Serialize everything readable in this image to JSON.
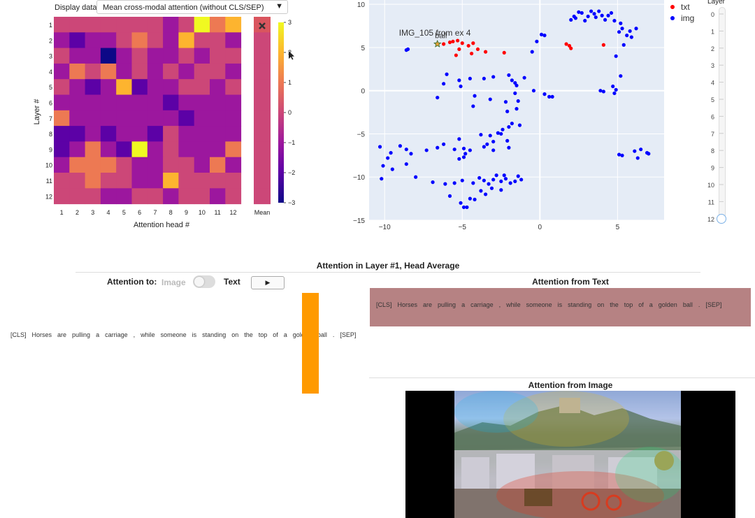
{
  "controls": {
    "display_label": "Display data:",
    "display_value": "Mean cross-modal attention (without CLS/SEP)",
    "dropdown_arrow": "▼"
  },
  "heatmap": {
    "row_labels": [
      "1",
      "2",
      "3",
      "4",
      "5",
      "6",
      "7",
      "8",
      "9",
      "10",
      "11",
      "12"
    ],
    "col_labels": [
      "1",
      "2",
      "3",
      "4",
      "5",
      "6",
      "7",
      "8",
      "9",
      "10",
      "11",
      "12"
    ],
    "mean_label": "Mean",
    "xlabel": "Attention head #",
    "ylabel": "Layer #",
    "colorbar_ticks": [
      "3",
      "2",
      "1",
      "0",
      "−1",
      "−2",
      "−3"
    ],
    "close_icon": "close-x-icon",
    "colors": [
      "#0d0887",
      "#5c01a6",
      "#9c179e",
      "#cc4778",
      "#ed7953",
      "#fdb42f",
      "#f0f921"
    ]
  },
  "chart_data": {
    "type": "scatter",
    "series": [
      {
        "name": "txt",
        "color": "#ff0000",
        "points": [
          [
            -5.8,
            5.6
          ],
          [
            -5.6,
            5.7
          ],
          [
            -5.3,
            5.8
          ],
          [
            -5.0,
            5.5
          ],
          [
            -5.2,
            4.8
          ],
          [
            -5.4,
            4.1
          ],
          [
            -4.6,
            5.2
          ],
          [
            -4.4,
            4.3
          ],
          [
            -4.0,
            4.8
          ],
          [
            -3.5,
            4.5
          ],
          [
            -2.3,
            4.4
          ],
          [
            -4.3,
            5.5
          ],
          [
            -6.2,
            5.4
          ],
          [
            1.7,
            5.4
          ],
          [
            1.9,
            5.2
          ],
          [
            2.0,
            4.9
          ],
          [
            4.1,
            5.3
          ]
        ]
      },
      {
        "name": "img",
        "color": "#0000ff",
        "points": [
          [
            -8.6,
            4.7
          ],
          [
            -8.5,
            4.8
          ],
          [
            -6.6,
            -0.8
          ],
          [
            -6.2,
            0.8
          ],
          [
            -6.0,
            1.9
          ],
          [
            -5.2,
            1.2
          ],
          [
            -5.1,
            0.5
          ],
          [
            -4.5,
            1.4
          ],
          [
            -4.3,
            -1.8
          ],
          [
            -4.2,
            -0.6
          ],
          [
            -3.6,
            1.4
          ],
          [
            -3.2,
            -1.0
          ],
          [
            -3.0,
            1.6
          ],
          [
            -2.2,
            -1.3
          ],
          [
            -2.1,
            -2.4
          ],
          [
            -2.0,
            1.8
          ],
          [
            -1.8,
            1.2
          ],
          [
            -1.6,
            0.9
          ],
          [
            -1.5,
            0.6
          ],
          [
            -1.6,
            -0.3
          ],
          [
            -1.4,
            -1.2
          ],
          [
            -1.5,
            -2.1
          ],
          [
            -1.8,
            -3.8
          ],
          [
            -1.3,
            -4.0
          ],
          [
            -2.4,
            -4.5
          ],
          [
            -2.5,
            -5.0
          ],
          [
            -3.0,
            -5.9
          ],
          [
            -3.4,
            -6.2
          ],
          [
            -3.6,
            -6.5
          ],
          [
            -3.8,
            -5.1
          ],
          [
            -3.2,
            -5.2
          ],
          [
            -2.7,
            -4.9
          ],
          [
            -2.0,
            -4.2
          ],
          [
            -2.1,
            -5.8
          ],
          [
            -2.0,
            -6.6
          ],
          [
            -3.0,
            -6.9
          ],
          [
            -4.5,
            -6.9
          ],
          [
            -4.8,
            -7.3
          ],
          [
            -4.9,
            -7.7
          ],
          [
            -5.2,
            -7.9
          ],
          [
            -5.5,
            -6.8
          ],
          [
            -4.9,
            -6.7
          ],
          [
            -5.2,
            -5.6
          ],
          [
            -6.2,
            -6.2
          ],
          [
            -6.6,
            -6.6
          ],
          [
            -7.3,
            -6.9
          ],
          [
            -8.6,
            -6.8
          ],
          [
            -8.3,
            -7.3
          ],
          [
            -8.6,
            -8.5
          ],
          [
            -9.0,
            -6.4
          ],
          [
            -9.6,
            -7.2
          ],
          [
            -9.8,
            -7.8
          ],
          [
            -10.1,
            -8.7
          ],
          [
            -10.3,
            -6.5
          ],
          [
            -10.2,
            -10.2
          ],
          [
            -9.5,
            -9.1
          ],
          [
            -8.0,
            -10.0
          ],
          [
            -6.9,
            -10.6
          ],
          [
            -6.1,
            -10.8
          ],
          [
            -5.5,
            -10.7
          ],
          [
            -5.0,
            -10.4
          ],
          [
            -4.3,
            -10.7
          ],
          [
            -3.9,
            -10.1
          ],
          [
            -3.6,
            -10.4
          ],
          [
            -3.3,
            -10.8
          ],
          [
            -3.0,
            -10.3
          ],
          [
            -2.8,
            -9.8
          ],
          [
            -2.5,
            -10.5
          ],
          [
            -2.2,
            -10.2
          ],
          [
            -1.9,
            -10.7
          ],
          [
            -1.6,
            -10.5
          ],
          [
            -1.2,
            -10.3
          ],
          [
            -1.4,
            -9.9
          ],
          [
            -2.3,
            -9.8
          ],
          [
            -3.8,
            -11.6
          ],
          [
            -4.5,
            -12.5
          ],
          [
            -3.5,
            -12.0
          ],
          [
            -2.5,
            -11.5
          ],
          [
            -3.1,
            -11.3
          ],
          [
            -4.2,
            -12.6
          ],
          [
            -5.1,
            -13.0
          ],
          [
            -4.7,
            -13.5
          ],
          [
            -4.9,
            -13.5
          ],
          [
            -5.8,
            -12.2
          ],
          [
            -0.5,
            4.5
          ],
          [
            -0.2,
            5.7
          ],
          [
            0.1,
            6.5
          ],
          [
            0.3,
            6.4
          ],
          [
            -1.0,
            1.5
          ],
          [
            -0.4,
            0.0
          ],
          [
            0.3,
            -0.4
          ],
          [
            0.6,
            -0.7
          ],
          [
            0.8,
            -0.7
          ],
          [
            2.0,
            8.2
          ],
          [
            2.2,
            8.6
          ],
          [
            2.3,
            8.4
          ],
          [
            2.5,
            9.1
          ],
          [
            2.7,
            9.0
          ],
          [
            2.9,
            8.1
          ],
          [
            3.1,
            8.6
          ],
          [
            3.3,
            9.2
          ],
          [
            3.5,
            8.9
          ],
          [
            3.6,
            8.5
          ],
          [
            3.8,
            9.2
          ],
          [
            4.0,
            8.7
          ],
          [
            4.2,
            8.2
          ],
          [
            4.4,
            8.7
          ],
          [
            4.6,
            9.0
          ],
          [
            4.8,
            8.1
          ],
          [
            5.2,
            7.8
          ],
          [
            5.3,
            7.2
          ],
          [
            5.1,
            6.8
          ],
          [
            5.6,
            6.4
          ],
          [
            5.8,
            6.9
          ],
          [
            6.2,
            7.2
          ],
          [
            5.9,
            6.2
          ],
          [
            5.4,
            5.3
          ],
          [
            4.9,
            4.0
          ],
          [
            5.2,
            1.7
          ],
          [
            3.9,
            0.0
          ],
          [
            4.1,
            -0.1
          ],
          [
            4.8,
            -0.3
          ],
          [
            4.9,
            0.1
          ],
          [
            4.7,
            0.5
          ],
          [
            6.1,
            -7.0
          ],
          [
            6.3,
            -7.8
          ],
          [
            6.5,
            -6.8
          ],
          [
            6.9,
            -7.2
          ],
          [
            7.0,
            -7.3
          ],
          [
            5.1,
            -7.4
          ],
          [
            5.3,
            -7.5
          ]
        ]
      }
    ],
    "highlight": {
      "label": "IMG_105 from ex 4",
      "point": [
        -6.6,
        5.4
      ]
    },
    "ball_label": {
      "label": "ball",
      "point": [
        -6.4,
        5.6
      ]
    },
    "xlim": [
      -11,
      8
    ],
    "ylim": [
      -15,
      10.5
    ],
    "xticks": [
      "−10",
      "−5",
      "0",
      "5"
    ],
    "yticks": [
      "10",
      "5",
      "0",
      "−5",
      "−10",
      "−15"
    ],
    "legend": [
      "txt",
      "img"
    ],
    "legend_placement": "top-right",
    "grid": true
  },
  "layer_slider": {
    "label": "Layer",
    "ticks": [
      "0",
      "1",
      "2",
      "3",
      "4",
      "5",
      "6",
      "7",
      "8",
      "9",
      "10",
      "11",
      "12"
    ],
    "value": 12
  },
  "attention": {
    "title": "Attention in Layer #1, Head Average",
    "to_label": "Attention to:",
    "toggle_left": "Image",
    "toggle_right": "Text",
    "play_icon": "▶",
    "tokens": [
      "[CLS]",
      "Horses",
      "are",
      "pulling",
      "a",
      "carriage",
      ",",
      "while",
      "someone",
      "is",
      "standing",
      "on",
      "the",
      "top",
      "of",
      "a",
      "golden",
      "ball",
      ".",
      "[SEP]"
    ],
    "from_text_title": "Attention from Text",
    "from_image_title": "Attention from Image"
  }
}
